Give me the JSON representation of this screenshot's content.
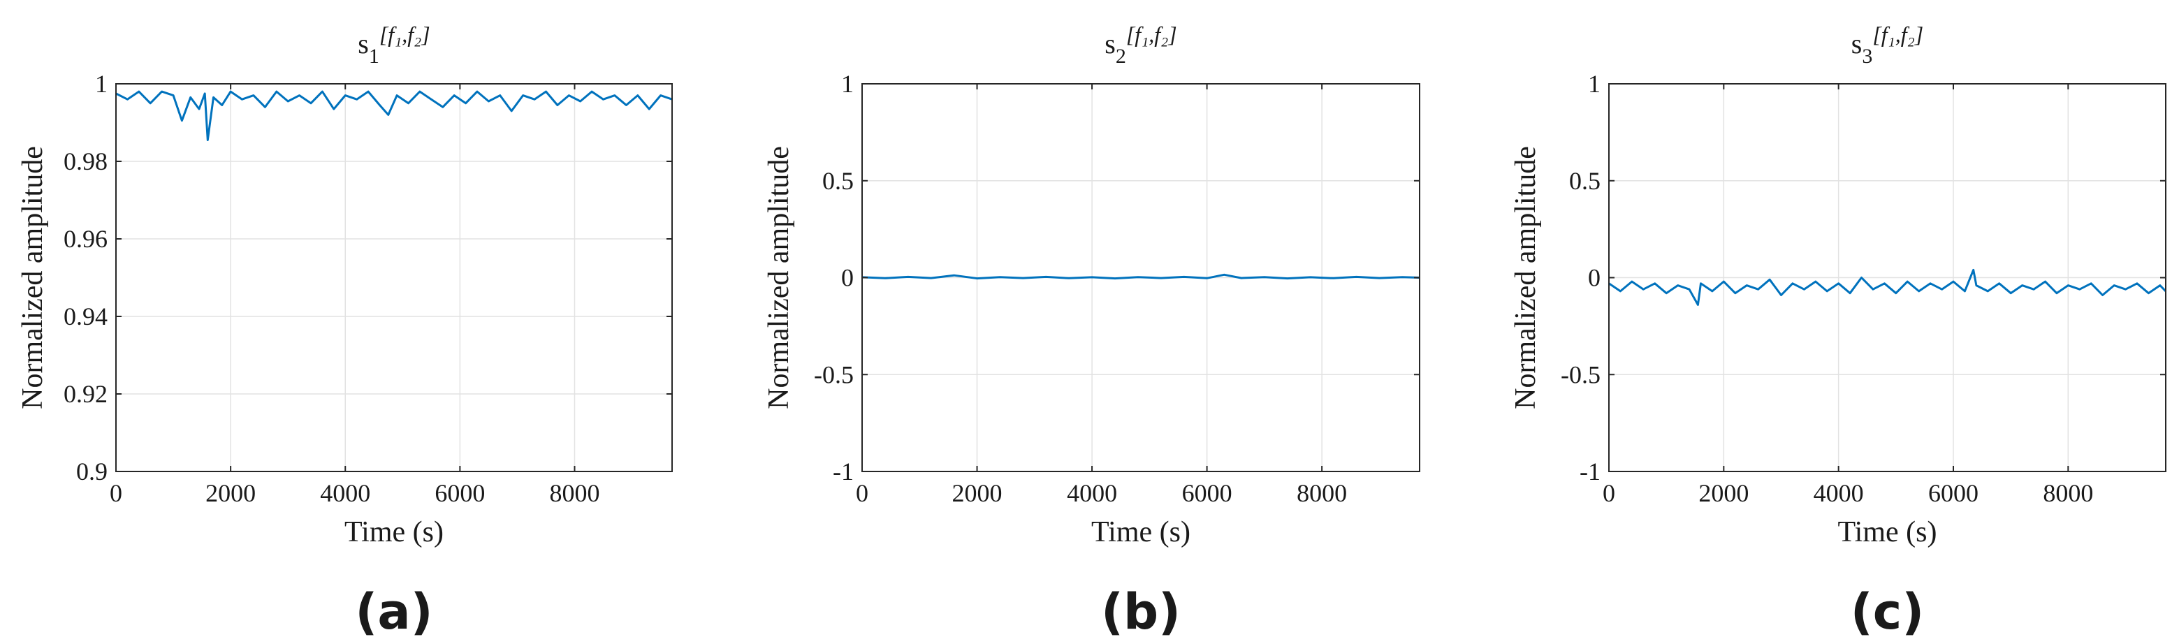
{
  "colors": {
    "series": "#0072BD",
    "axis": "#262626",
    "grid": "#e2e2e2"
  },
  "chart_data": [
    {
      "type": "line",
      "title": {
        "base": "s",
        "sub": "1",
        "sup": "[f₁,f₂]"
      },
      "xlabel": "Time (s)",
      "ylabel": "Normalized amplitude",
      "xlim": [
        0,
        9700
      ],
      "ylim": [
        0.9,
        1
      ],
      "xticks": [
        0,
        2000,
        4000,
        6000,
        8000
      ],
      "xtick_labels": [
        "0",
        "2000",
        "4000",
        "6000",
        "8000"
      ],
      "yticks": [
        0.9,
        0.92,
        0.94,
        0.96,
        0.98,
        1
      ],
      "ytick_labels": [
        "0.9",
        "0.92",
        "0.94",
        "0.96",
        "0.98",
        "1"
      ],
      "grid": true,
      "series": [
        {
          "name": "s1",
          "x": [
            0,
            200,
            400,
            600,
            800,
            1000,
            1150,
            1300,
            1450,
            1550,
            1600,
            1700,
            1850,
            2000,
            2200,
            2400,
            2600,
            2800,
            3000,
            3200,
            3400,
            3600,
            3800,
            4000,
            4200,
            4400,
            4600,
            4750,
            4900,
            5100,
            5300,
            5500,
            5700,
            5900,
            6100,
            6300,
            6500,
            6700,
            6900,
            7100,
            7300,
            7500,
            7700,
            7900,
            8100,
            8300,
            8500,
            8700,
            8900,
            9100,
            9300,
            9500,
            9700
          ],
          "y": [
            0.9975,
            0.996,
            0.998,
            0.995,
            0.998,
            0.997,
            0.9905,
            0.9965,
            0.9935,
            0.9975,
            0.9855,
            0.9965,
            0.9945,
            0.998,
            0.996,
            0.997,
            0.994,
            0.998,
            0.9955,
            0.997,
            0.995,
            0.998,
            0.9935,
            0.997,
            0.996,
            0.998,
            0.9945,
            0.992,
            0.997,
            0.995,
            0.998,
            0.996,
            0.994,
            0.997,
            0.995,
            0.998,
            0.9955,
            0.997,
            0.993,
            0.997,
            0.996,
            0.998,
            0.9945,
            0.997,
            0.9955,
            0.998,
            0.996,
            0.997,
            0.9945,
            0.997,
            0.9935,
            0.997,
            0.996
          ]
        }
      ],
      "panel_label": "(a)"
    },
    {
      "type": "line",
      "title": {
        "base": "s",
        "sub": "2",
        "sup": "[f₁,f₂]"
      },
      "xlabel": "Time (s)",
      "ylabel": "Normalized amplitude",
      "xlim": [
        0,
        9700
      ],
      "ylim": [
        -1,
        1
      ],
      "xticks": [
        0,
        2000,
        4000,
        6000,
        8000
      ],
      "xtick_labels": [
        "0",
        "2000",
        "4000",
        "6000",
        "8000"
      ],
      "yticks": [
        -1,
        -0.5,
        0,
        0.5,
        1
      ],
      "ytick_labels": [
        "-1",
        "-0.5",
        "0",
        "0.5",
        "1"
      ],
      "grid": true,
      "series": [
        {
          "name": "s2",
          "x": [
            0,
            400,
            800,
            1200,
            1600,
            2000,
            2400,
            2800,
            3200,
            3600,
            4000,
            4400,
            4800,
            5200,
            5600,
            6000,
            6300,
            6600,
            7000,
            7400,
            7800,
            8200,
            8600,
            9000,
            9400,
            9700
          ],
          "y": [
            0.002,
            -0.003,
            0.004,
            -0.002,
            0.012,
            -0.004,
            0.003,
            -0.002,
            0.004,
            -0.003,
            0.002,
            -0.004,
            0.003,
            -0.002,
            0.004,
            -0.003,
            0.015,
            -0.002,
            0.003,
            -0.004,
            0.002,
            -0.003,
            0.004,
            -0.002,
            0.003,
            0.0
          ]
        }
      ],
      "panel_label": "(b)"
    },
    {
      "type": "line",
      "title": {
        "base": "s",
        "sub": "3",
        "sup": "[f₁,f₂]"
      },
      "xlabel": "Time (s)",
      "ylabel": "Normalized amplitude",
      "xlim": [
        0,
        9700
      ],
      "ylim": [
        -1,
        1
      ],
      "xticks": [
        0,
        2000,
        4000,
        6000,
        8000
      ],
      "xtick_labels": [
        "0",
        "2000",
        "4000",
        "6000",
        "8000"
      ],
      "yticks": [
        -1,
        -0.5,
        0,
        0.5,
        1
      ],
      "ytick_labels": [
        "-1",
        "-0.5",
        "0",
        "0.5",
        "1"
      ],
      "grid": true,
      "series": [
        {
          "name": "s3",
          "x": [
            0,
            200,
            400,
            600,
            800,
            1000,
            1200,
            1400,
            1550,
            1600,
            1800,
            2000,
            2200,
            2400,
            2600,
            2800,
            3000,
            3200,
            3400,
            3600,
            3800,
            4000,
            4200,
            4400,
            4600,
            4800,
            5000,
            5200,
            5400,
            5600,
            5800,
            6000,
            6200,
            6350,
            6400,
            6600,
            6800,
            7000,
            7200,
            7400,
            7600,
            7800,
            8000,
            8200,
            8400,
            8600,
            8800,
            9000,
            9200,
            9400,
            9600,
            9700
          ],
          "y": [
            -0.03,
            -0.07,
            -0.02,
            -0.06,
            -0.03,
            -0.08,
            -0.04,
            -0.06,
            -0.14,
            -0.03,
            -0.07,
            -0.02,
            -0.08,
            -0.04,
            -0.06,
            -0.01,
            -0.09,
            -0.03,
            -0.06,
            -0.02,
            -0.07,
            -0.03,
            -0.08,
            0.0,
            -0.06,
            -0.03,
            -0.08,
            -0.02,
            -0.07,
            -0.03,
            -0.06,
            -0.02,
            -0.07,
            0.04,
            -0.04,
            -0.07,
            -0.03,
            -0.08,
            -0.04,
            -0.06,
            -0.02,
            -0.08,
            -0.04,
            -0.06,
            -0.03,
            -0.09,
            -0.04,
            -0.06,
            -0.03,
            -0.08,
            -0.04,
            -0.07
          ]
        }
      ],
      "panel_label": "(c)"
    }
  ]
}
